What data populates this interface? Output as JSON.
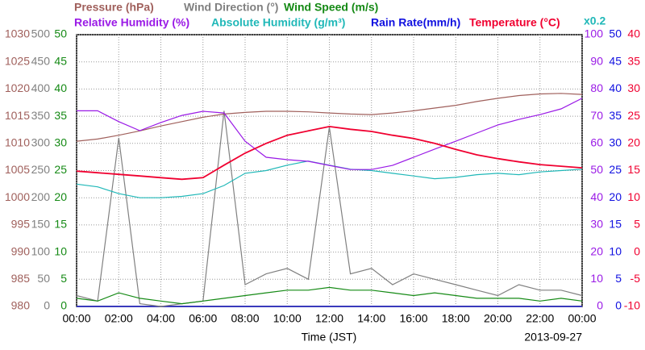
{
  "chart_data": {
    "type": "line",
    "xlabel": "Time (JST)",
    "date": "2013-09-27",
    "grid": true,
    "x": [
      0,
      1,
      2,
      3,
      4,
      5,
      6,
      7,
      8,
      9,
      10,
      11,
      12,
      13,
      14,
      15,
      16,
      17,
      18,
      19,
      20,
      21,
      22,
      23,
      24
    ],
    "xlim": [
      0,
      24
    ],
    "xticks": [
      {
        "value": 0,
        "label": "00:00"
      },
      {
        "value": 2,
        "label": "02:00"
      },
      {
        "value": 4,
        "label": "04:00"
      },
      {
        "value": 6,
        "label": "06:00"
      },
      {
        "value": 8,
        "label": "08:00"
      },
      {
        "value": 10,
        "label": "10:00"
      },
      {
        "value": 12,
        "label": "12:00"
      },
      {
        "value": 14,
        "label": "14:00"
      },
      {
        "value": 16,
        "label": "16:00"
      },
      {
        "value": 18,
        "label": "18:00"
      },
      {
        "value": 20,
        "label": "20:00"
      },
      {
        "value": 22,
        "label": "22:00"
      },
      {
        "value": 24,
        "label": "00:00"
      }
    ],
    "axes": [
      {
        "side": "left",
        "color": "#a0605c",
        "lim": [
          980,
          1030
        ],
        "ticks": [
          980,
          985,
          990,
          995,
          1000,
          1005,
          1010,
          1015,
          1020,
          1025,
          1030
        ]
      },
      {
        "side": "left",
        "color": "#808080",
        "lim": [
          0,
          500
        ],
        "ticks": [
          0,
          50,
          100,
          150,
          200,
          250,
          300,
          350,
          400,
          450,
          500
        ]
      },
      {
        "side": "left",
        "color": "#158a15",
        "lim": [
          0,
          50
        ],
        "ticks": [
          0,
          5,
          10,
          15,
          20,
          25,
          30,
          35,
          40,
          45,
          50
        ]
      },
      {
        "side": "right",
        "color": "#9a1ae6",
        "lim": [
          0,
          100
        ],
        "ticks": [
          0,
          10,
          20,
          30,
          40,
          50,
          60,
          70,
          80,
          90,
          100
        ]
      },
      {
        "side": "right",
        "color": "#1010e0",
        "lim": [
          0,
          50
        ],
        "ticks": [
          0,
          5,
          10,
          15,
          20,
          25,
          30,
          35,
          40,
          45,
          50
        ]
      },
      {
        "side": "right",
        "color": "#f00030",
        "lim": [
          -10,
          40
        ],
        "ticks": [
          -10,
          -5,
          0,
          5,
          10,
          15,
          20,
          25,
          30,
          35,
          40
        ]
      }
    ],
    "series": [
      {
        "name": "Pressure (hPa)",
        "color": "#a0605c",
        "axis": 0,
        "values": [
          1010.4,
          1010.8,
          1011.5,
          1012.3,
          1013.2,
          1014.0,
          1014.8,
          1015.4,
          1015.7,
          1015.9,
          1015.9,
          1015.8,
          1015.6,
          1015.4,
          1015.3,
          1015.6,
          1016.0,
          1016.5,
          1017.0,
          1017.7,
          1018.3,
          1018.8,
          1019.1,
          1019.2,
          1019.0
        ]
      },
      {
        "name": "Wind Direction (°)",
        "color": "#808080",
        "axis": 1,
        "values": [
          20,
          10,
          310,
          5,
          0,
          5,
          10,
          360,
          40,
          60,
          70,
          50,
          330,
          60,
          70,
          40,
          60,
          50,
          40,
          30,
          20,
          40,
          30,
          30,
          20
        ]
      },
      {
        "name": "Wind Speed (m/s)",
        "color": "#158a15",
        "axis": 2,
        "values": [
          1.5,
          1,
          2.5,
          1.5,
          1,
          0.5,
          1,
          1.5,
          2,
          2.5,
          3,
          3,
          3.5,
          3,
          3,
          2.5,
          2,
          2.5,
          2,
          1.5,
          1.5,
          1.5,
          1,
          1.5,
          1
        ]
      },
      {
        "name": "Relative Humidity (%)",
        "color": "#9a1ae6",
        "axis": 3,
        "values": [
          72,
          72,
          68,
          64.7,
          67.7,
          70.3,
          71.8,
          71.2,
          60.8,
          54.9,
          54,
          53.4,
          51.9,
          50.4,
          50.4,
          51.9,
          54.9,
          57.9,
          60.8,
          63.8,
          66.8,
          68.8,
          70.6,
          72.7,
          76.6
        ]
      },
      {
        "name": "Absolute Humidity (g/m³)",
        "color": "#20b8b8",
        "axis": 3,
        "scale": {
          "value": 0.2,
          "label": "x0.2"
        },
        "values": [
          9.0,
          8.8,
          8.3,
          8.0,
          8.0,
          8.1,
          8.3,
          8.9,
          9.8,
          10.0,
          10.4,
          10.7,
          10.4,
          10.1,
          10.0,
          9.8,
          9.6,
          9.4,
          9.5,
          9.7,
          9.8,
          9.7,
          9.9,
          10.0,
          10.1
        ]
      },
      {
        "name": "Rain Rate(mm/h)",
        "color": "#1010e0",
        "axis": 4,
        "values": [
          0,
          0,
          0,
          0,
          0,
          0,
          0,
          0,
          0,
          0,
          0,
          0,
          0,
          0,
          0,
          0,
          0,
          0,
          0,
          0,
          0,
          0,
          0,
          0,
          0
        ]
      },
      {
        "name": "Temperature (°C)",
        "color": "#f00030",
        "axis": 5,
        "values": [
          14.9,
          14.6,
          14.3,
          14.0,
          13.7,
          13.4,
          13.7,
          16.0,
          18.2,
          20.0,
          21.5,
          22.3,
          23.1,
          22.6,
          22.2,
          21.5,
          20.9,
          20.0,
          18.9,
          17.9,
          17.2,
          16.6,
          16.1,
          15.8,
          15.5
        ]
      }
    ]
  }
}
